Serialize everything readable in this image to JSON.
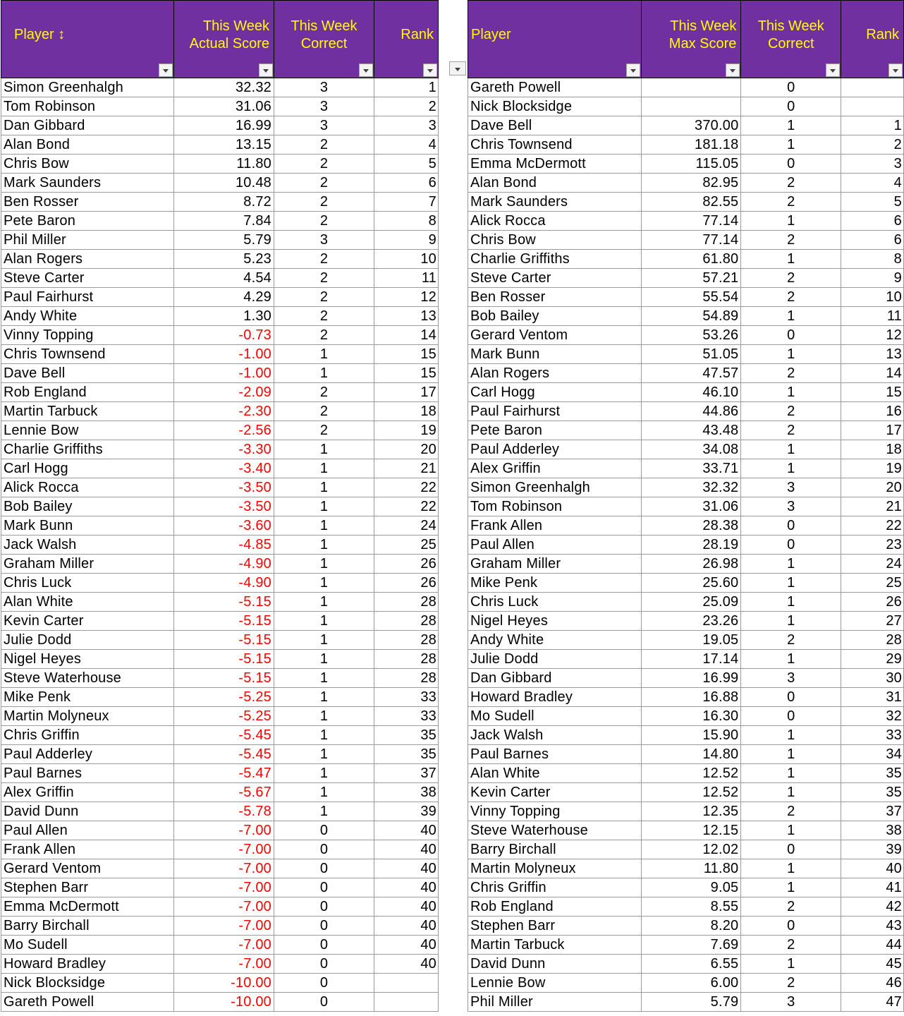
{
  "left_table": {
    "headers": {
      "player": "Player ↕",
      "actual_score": "This Week Actual Score",
      "correct": "This Week Correct",
      "rank": "Rank"
    },
    "rows": [
      {
        "player": "Simon Greenhalgh",
        "score": "32.32",
        "correct": "3",
        "rank": "1"
      },
      {
        "player": "Tom Robinson",
        "score": "31.06",
        "correct": "3",
        "rank": "2"
      },
      {
        "player": "Dan Gibbard",
        "score": "16.99",
        "correct": "3",
        "rank": "3"
      },
      {
        "player": "Alan Bond",
        "score": "13.15",
        "correct": "2",
        "rank": "4"
      },
      {
        "player": "Chris Bow",
        "score": "11.80",
        "correct": "2",
        "rank": "5"
      },
      {
        "player": "Mark Saunders",
        "score": "10.48",
        "correct": "2",
        "rank": "6"
      },
      {
        "player": "Ben Rosser",
        "score": "8.72",
        "correct": "2",
        "rank": "7"
      },
      {
        "player": "Pete Baron",
        "score": "7.84",
        "correct": "2",
        "rank": "8"
      },
      {
        "player": "Phil Miller",
        "score": "5.79",
        "correct": "3",
        "rank": "9"
      },
      {
        "player": "Alan Rogers",
        "score": "5.23",
        "correct": "2",
        "rank": "10"
      },
      {
        "player": "Steve Carter",
        "score": "4.54",
        "correct": "2",
        "rank": "11"
      },
      {
        "player": "Paul Fairhurst",
        "score": "4.29",
        "correct": "2",
        "rank": "12"
      },
      {
        "player": "Andy White",
        "score": "1.30",
        "correct": "2",
        "rank": "13"
      },
      {
        "player": "Vinny Topping",
        "score": "-0.73",
        "correct": "2",
        "rank": "14"
      },
      {
        "player": "Chris Townsend",
        "score": "-1.00",
        "correct": "1",
        "rank": "15"
      },
      {
        "player": "Dave Bell",
        "score": "-1.00",
        "correct": "1",
        "rank": "15"
      },
      {
        "player": "Rob England",
        "score": "-2.09",
        "correct": "2",
        "rank": "17"
      },
      {
        "player": "Martin Tarbuck",
        "score": "-2.30",
        "correct": "2",
        "rank": "18"
      },
      {
        "player": "Lennie Bow",
        "score": "-2.56",
        "correct": "2",
        "rank": "19"
      },
      {
        "player": "Charlie Griffiths",
        "score": "-3.30",
        "correct": "1",
        "rank": "20"
      },
      {
        "player": "Carl Hogg",
        "score": "-3.40",
        "correct": "1",
        "rank": "21"
      },
      {
        "player": "Alick Rocca",
        "score": "-3.50",
        "correct": "1",
        "rank": "22"
      },
      {
        "player": "Bob Bailey",
        "score": "-3.50",
        "correct": "1",
        "rank": "22"
      },
      {
        "player": "Mark Bunn",
        "score": "-3.60",
        "correct": "1",
        "rank": "24"
      },
      {
        "player": "Jack Walsh",
        "score": "-4.85",
        "correct": "1",
        "rank": "25"
      },
      {
        "player": "Graham Miller",
        "score": "-4.90",
        "correct": "1",
        "rank": "26"
      },
      {
        "player": "Chris Luck",
        "score": "-4.90",
        "correct": "1",
        "rank": "26"
      },
      {
        "player": "Alan White",
        "score": "-5.15",
        "correct": "1",
        "rank": "28"
      },
      {
        "player": "Kevin Carter",
        "score": "-5.15",
        "correct": "1",
        "rank": "28"
      },
      {
        "player": "Julie Dodd",
        "score": "-5.15",
        "correct": "1",
        "rank": "28"
      },
      {
        "player": "Nigel Heyes",
        "score": "-5.15",
        "correct": "1",
        "rank": "28"
      },
      {
        "player": "Steve Waterhouse",
        "score": "-5.15",
        "correct": "1",
        "rank": "28"
      },
      {
        "player": "Mike Penk",
        "score": "-5.25",
        "correct": "1",
        "rank": "33"
      },
      {
        "player": "Martin Molyneux",
        "score": "-5.25",
        "correct": "1",
        "rank": "33"
      },
      {
        "player": "Chris Griffin",
        "score": "-5.45",
        "correct": "1",
        "rank": "35"
      },
      {
        "player": "Paul Adderley",
        "score": "-5.45",
        "correct": "1",
        "rank": "35"
      },
      {
        "player": "Paul Barnes",
        "score": "-5.47",
        "correct": "1",
        "rank": "37"
      },
      {
        "player": "Alex Griffin",
        "score": "-5.67",
        "correct": "1",
        "rank": "38"
      },
      {
        "player": "David Dunn",
        "score": "-5.78",
        "correct": "1",
        "rank": "39"
      },
      {
        "player": "Paul Allen",
        "score": "-7.00",
        "correct": "0",
        "rank": "40"
      },
      {
        "player": "Frank Allen",
        "score": "-7.00",
        "correct": "0",
        "rank": "40"
      },
      {
        "player": "Gerard Ventom",
        "score": "-7.00",
        "correct": "0",
        "rank": "40"
      },
      {
        "player": "Stephen Barr",
        "score": "-7.00",
        "correct": "0",
        "rank": "40"
      },
      {
        "player": "Emma McDermott",
        "score": "-7.00",
        "correct": "0",
        "rank": "40"
      },
      {
        "player": "Barry Birchall",
        "score": "-7.00",
        "correct": "0",
        "rank": "40"
      },
      {
        "player": "Mo Sudell",
        "score": "-7.00",
        "correct": "0",
        "rank": "40"
      },
      {
        "player": "Howard Bradley",
        "score": "-7.00",
        "correct": "0",
        "rank": "40"
      },
      {
        "player": "Nick Blocksidge",
        "score": "-10.00",
        "correct": "0",
        "rank": ""
      },
      {
        "player": "Gareth Powell",
        "score": "-10.00",
        "correct": "0",
        "rank": ""
      }
    ]
  },
  "right_table": {
    "headers": {
      "player": "Player",
      "max_score": "This Week Max Score",
      "correct": "This Week Correct",
      "rank": "Rank"
    },
    "rows": [
      {
        "player": "Gareth Powell",
        "score": "",
        "correct": "0",
        "rank": ""
      },
      {
        "player": "Nick Blocksidge",
        "score": "",
        "correct": "0",
        "rank": ""
      },
      {
        "player": "Dave Bell",
        "score": "370.00",
        "correct": "1",
        "rank": "1"
      },
      {
        "player": "Chris Townsend",
        "score": "181.18",
        "correct": "1",
        "rank": "2"
      },
      {
        "player": "Emma McDermott",
        "score": "115.05",
        "correct": "0",
        "rank": "3"
      },
      {
        "player": "Alan Bond",
        "score": "82.95",
        "correct": "2",
        "rank": "4"
      },
      {
        "player": "Mark Saunders",
        "score": "82.55",
        "correct": "2",
        "rank": "5"
      },
      {
        "player": "Alick Rocca",
        "score": "77.14",
        "correct": "1",
        "rank": "6"
      },
      {
        "player": "Chris Bow",
        "score": "77.14",
        "correct": "2",
        "rank": "6"
      },
      {
        "player": "Charlie Griffiths",
        "score": "61.80",
        "correct": "1",
        "rank": "8"
      },
      {
        "player": "Steve Carter",
        "score": "57.21",
        "correct": "2",
        "rank": "9"
      },
      {
        "player": "Ben Rosser",
        "score": "55.54",
        "correct": "2",
        "rank": "10"
      },
      {
        "player": "Bob Bailey",
        "score": "54.89",
        "correct": "1",
        "rank": "11"
      },
      {
        "player": "Gerard Ventom",
        "score": "53.26",
        "correct": "0",
        "rank": "12"
      },
      {
        "player": "Mark Bunn",
        "score": "51.05",
        "correct": "1",
        "rank": "13"
      },
      {
        "player": "Alan Rogers",
        "score": "47.57",
        "correct": "2",
        "rank": "14"
      },
      {
        "player": "Carl Hogg",
        "score": "46.10",
        "correct": "1",
        "rank": "15"
      },
      {
        "player": "Paul Fairhurst",
        "score": "44.86",
        "correct": "2",
        "rank": "16"
      },
      {
        "player": "Pete Baron",
        "score": "43.48",
        "correct": "2",
        "rank": "17"
      },
      {
        "player": "Paul Adderley",
        "score": "34.08",
        "correct": "1",
        "rank": "18"
      },
      {
        "player": "Alex Griffin",
        "score": "33.71",
        "correct": "1",
        "rank": "19"
      },
      {
        "player": "Simon Greenhalgh",
        "score": "32.32",
        "correct": "3",
        "rank": "20"
      },
      {
        "player": "Tom Robinson",
        "score": "31.06",
        "correct": "3",
        "rank": "21"
      },
      {
        "player": "Frank Allen",
        "score": "28.38",
        "correct": "0",
        "rank": "22"
      },
      {
        "player": "Paul Allen",
        "score": "28.19",
        "correct": "0",
        "rank": "23"
      },
      {
        "player": "Graham Miller",
        "score": "26.98",
        "correct": "1",
        "rank": "24"
      },
      {
        "player": "Mike Penk",
        "score": "25.60",
        "correct": "1",
        "rank": "25"
      },
      {
        "player": "Chris Luck",
        "score": "25.09",
        "correct": "1",
        "rank": "26"
      },
      {
        "player": "Nigel Heyes",
        "score": "23.26",
        "correct": "1",
        "rank": "27"
      },
      {
        "player": "Andy White",
        "score": "19.05",
        "correct": "2",
        "rank": "28"
      },
      {
        "player": "Julie Dodd",
        "score": "17.14",
        "correct": "1",
        "rank": "29"
      },
      {
        "player": "Dan Gibbard",
        "score": "16.99",
        "correct": "3",
        "rank": "30"
      },
      {
        "player": "Howard Bradley",
        "score": "16.88",
        "correct": "0",
        "rank": "31"
      },
      {
        "player": "Mo Sudell",
        "score": "16.30",
        "correct": "0",
        "rank": "32"
      },
      {
        "player": "Jack Walsh",
        "score": "15.90",
        "correct": "1",
        "rank": "33"
      },
      {
        "player": "Paul Barnes",
        "score": "14.80",
        "correct": "1",
        "rank": "34"
      },
      {
        "player": "Alan White",
        "score": "12.52",
        "correct": "1",
        "rank": "35"
      },
      {
        "player": "Kevin Carter",
        "score": "12.52",
        "correct": "1",
        "rank": "35"
      },
      {
        "player": "Vinny Topping",
        "score": "12.35",
        "correct": "2",
        "rank": "37"
      },
      {
        "player": "Steve Waterhouse",
        "score": "12.15",
        "correct": "1",
        "rank": "38"
      },
      {
        "player": "Barry Birchall",
        "score": "12.02",
        "correct": "0",
        "rank": "39"
      },
      {
        "player": "Martin Molyneux",
        "score": "11.80",
        "correct": "1",
        "rank": "40"
      },
      {
        "player": "Chris Griffin",
        "score": "9.05",
        "correct": "1",
        "rank": "41"
      },
      {
        "player": "Rob England",
        "score": "8.55",
        "correct": "2",
        "rank": "42"
      },
      {
        "player": "Stephen Barr",
        "score": "8.20",
        "correct": "0",
        "rank": "43"
      },
      {
        "player": "Martin Tarbuck",
        "score": "7.69",
        "correct": "2",
        "rank": "44"
      },
      {
        "player": "David Dunn",
        "score": "6.55",
        "correct": "1",
        "rank": "45"
      },
      {
        "player": "Lennie Bow",
        "score": "6.00",
        "correct": "2",
        "rank": "46"
      },
      {
        "player": "Phil Miller",
        "score": "5.79",
        "correct": "3",
        "rank": "47"
      }
    ]
  },
  "colors": {
    "header_bg": "#7030a0",
    "header_text": "#ffff00",
    "negative_text": "#ff0000"
  },
  "icons": {
    "filter_dropdown": "filter-dropdown-icon"
  }
}
